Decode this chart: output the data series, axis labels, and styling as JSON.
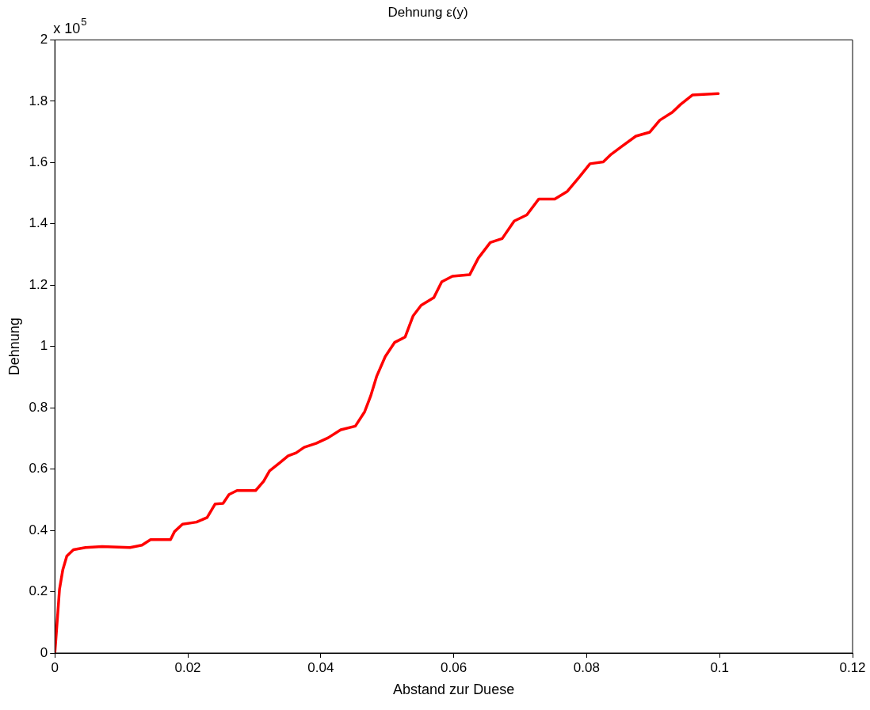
{
  "chart_data": {
    "type": "line",
    "title": "Dehnung ε(y)",
    "xlabel": "Abstand zur Duese",
    "ylabel": "Dehnung",
    "annotations": [
      "x 10$^{5}$"
    ],
    "xlim": [
      0,
      0.12
    ],
    "xticks": [
      0,
      0.02,
      0.04,
      0.06,
      0.08,
      0.1,
      0.12
    ],
    "ylim": [
      0,
      2
    ],
    "yticks": [
      0,
      0.2,
      0.4,
      0.6,
      0.8,
      1,
      1.2,
      1.4,
      1.6,
      1.8,
      2
    ],
    "grid": false,
    "legend": false,
    "marker": "none",
    "line_style": "solid",
    "series": [
      {
        "color": "#ff0000",
        "x": [
          0,
          0.0004,
          0.0007,
          0.0012,
          0.0018,
          0.0028,
          0.0046,
          0.0071,
          0.0113,
          0.0131,
          0.0144,
          0.0174,
          0.018,
          0.0192,
          0.0213,
          0.0229,
          0.0241,
          0.0253,
          0.0262,
          0.0274,
          0.0302,
          0.0314,
          0.0323,
          0.0338,
          0.0351,
          0.0363,
          0.0375,
          0.0393,
          0.0411,
          0.043,
          0.0452,
          0.0466,
          0.0475,
          0.0484,
          0.0497,
          0.0511,
          0.0527,
          0.0539,
          0.0551,
          0.057,
          0.0582,
          0.0598,
          0.0624,
          0.0637,
          0.0655,
          0.0673,
          0.0691,
          0.071,
          0.0728,
          0.0752,
          0.0771,
          0.0789,
          0.0805,
          0.0825,
          0.0837,
          0.0853,
          0.0874,
          0.0895,
          0.091,
          0.0929,
          0.0941,
          0.0959,
          0.0998
        ],
        "values": [
          0,
          0.118,
          0.208,
          0.272,
          0.316,
          0.337,
          0.344,
          0.347,
          0.344,
          0.352,
          0.37,
          0.37,
          0.396,
          0.42,
          0.427,
          0.442,
          0.486,
          0.488,
          0.517,
          0.53,
          0.53,
          0.56,
          0.594,
          0.62,
          0.643,
          0.653,
          0.671,
          0.684,
          0.702,
          0.728,
          0.74,
          0.787,
          0.838,
          0.902,
          0.967,
          1.013,
          1.031,
          1.1,
          1.134,
          1.159,
          1.211,
          1.229,
          1.234,
          1.288,
          1.339,
          1.352,
          1.409,
          1.429,
          1.481,
          1.481,
          1.506,
          1.553,
          1.596,
          1.602,
          1.627,
          1.653,
          1.686,
          1.699,
          1.738,
          1.764,
          1.789,
          1.82,
          1.825
        ]
      }
    ]
  }
}
